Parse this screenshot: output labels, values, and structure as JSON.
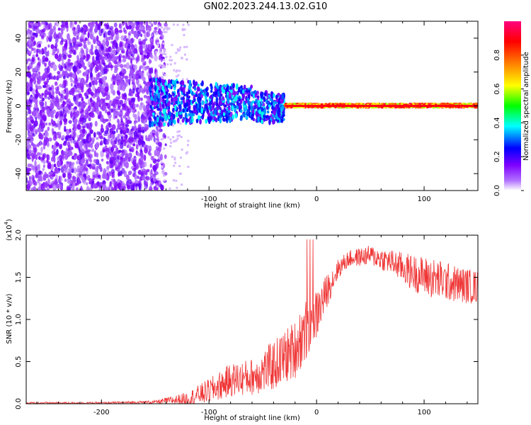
{
  "page": {
    "title": "GN02.2023.244.13.02.G10"
  },
  "chart_data": [
    {
      "type": "heatmap",
      "title": "",
      "xlabel": "Height of straight line (km)",
      "ylabel": "Frequency (Hz)",
      "xlim": [
        -270,
        150
      ],
      "ylim": [
        -50,
        50
      ],
      "x_ticks": [
        -200,
        -100,
        0,
        100
      ],
      "y_ticks": [
        -40,
        -20,
        0,
        20,
        40
      ],
      "grid": false,
      "colorbar": {
        "label": "Normalized spectral amplitude",
        "range": [
          0,
          1
        ],
        "ticks": [
          0.0,
          0.2,
          0.4,
          0.6,
          0.8
        ],
        "colors": [
          "#ffffff",
          "#7f00ff",
          "#0000ff",
          "#00ffff",
          "#00ff00",
          "#ffff00",
          "#ff7f00",
          "#ff0000",
          "#ff0080"
        ]
      },
      "signal": {
        "description_points": [
          {
            "x": -155,
            "freq": 2,
            "amplitude": 0.25
          },
          {
            "x": -100,
            "freq": 2,
            "amplitude": 0.3
          },
          {
            "x": -60,
            "freq": 0,
            "amplitude": 0.35
          },
          {
            "x": -30,
            "freq": -1,
            "amplitude": 0.45
          },
          {
            "x": 0,
            "freq": 0,
            "amplitude": 0.9
          },
          {
            "x": 50,
            "freq": 0,
            "amplitude": 0.9
          },
          {
            "x": 100,
            "freq": 0,
            "amplitude": 0.9
          },
          {
            "x": 150,
            "freq": 1,
            "amplitude": 0.9
          }
        ]
      }
    },
    {
      "type": "line",
      "title": "",
      "xlabel": "Height of straight line (km)",
      "ylabel": "SNR (10 * v/v)",
      "y_multiplier_label": "(x10",
      "y_multiplier_exp": "4",
      "xlim": [
        -270,
        150
      ],
      "ylim": [
        0.0,
        2.0
      ],
      "x_ticks": [
        -200,
        -100,
        0,
        100
      ],
      "y_ticks": [
        0.0,
        0.5,
        1.0,
        1.5,
        2.0
      ],
      "grid": false,
      "series_color": "#ef3535",
      "envelope": {
        "x": [
          -270,
          -200,
          -150,
          -120,
          -100,
          -80,
          -60,
          -40,
          -20,
          -10,
          0,
          10,
          20,
          30,
          50,
          70,
          90,
          110,
          130,
          150
        ],
        "mean": [
          0.01,
          0.01,
          0.02,
          0.06,
          0.15,
          0.28,
          0.32,
          0.45,
          0.65,
          0.9,
          1.05,
          1.35,
          1.6,
          1.72,
          1.76,
          1.68,
          1.55,
          1.48,
          1.42,
          1.38
        ],
        "spread": [
          0.01,
          0.01,
          0.02,
          0.08,
          0.15,
          0.2,
          0.22,
          0.3,
          0.35,
          0.4,
          0.3,
          0.2,
          0.12,
          0.1,
          0.12,
          0.15,
          0.22,
          0.25,
          0.22,
          0.2
        ]
      }
    }
  ]
}
